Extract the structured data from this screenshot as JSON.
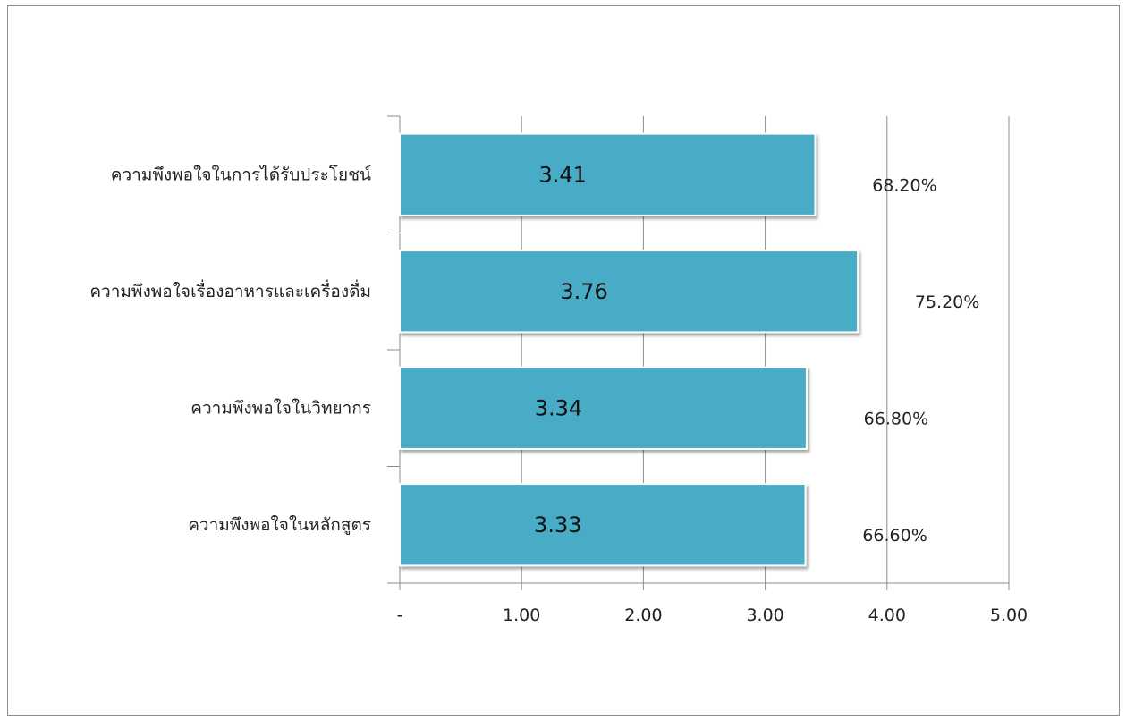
{
  "chart_data": {
    "type": "bar",
    "orientation": "horizontal",
    "categories": [
      "ความพึงพอใจในการได้รับประโยชน์",
      "ความพึงพอใจเรื่องอาหารและเครื่องดื่ม",
      "ความพึงพอใจในวิทยากร",
      "ความพึงพอใจในหลักสูตร"
    ],
    "values": [
      3.41,
      3.76,
      3.34,
      3.33
    ],
    "value_labels": [
      "3.41",
      "3.76",
      "3.34",
      "3.33"
    ],
    "percent_labels": [
      "68.20%",
      "75.20%",
      "66.80%",
      "66.60%"
    ],
    "x_ticks": [
      0,
      1,
      2,
      3,
      4,
      5
    ],
    "x_tick_labels": [
      "-",
      "1.00",
      "2.00",
      "3.00",
      "4.00",
      "5.00"
    ],
    "xlim": [
      0,
      5
    ],
    "grid": true,
    "bar_color": "#4aacc6",
    "title": "",
    "xlabel": "",
    "ylabel": ""
  }
}
